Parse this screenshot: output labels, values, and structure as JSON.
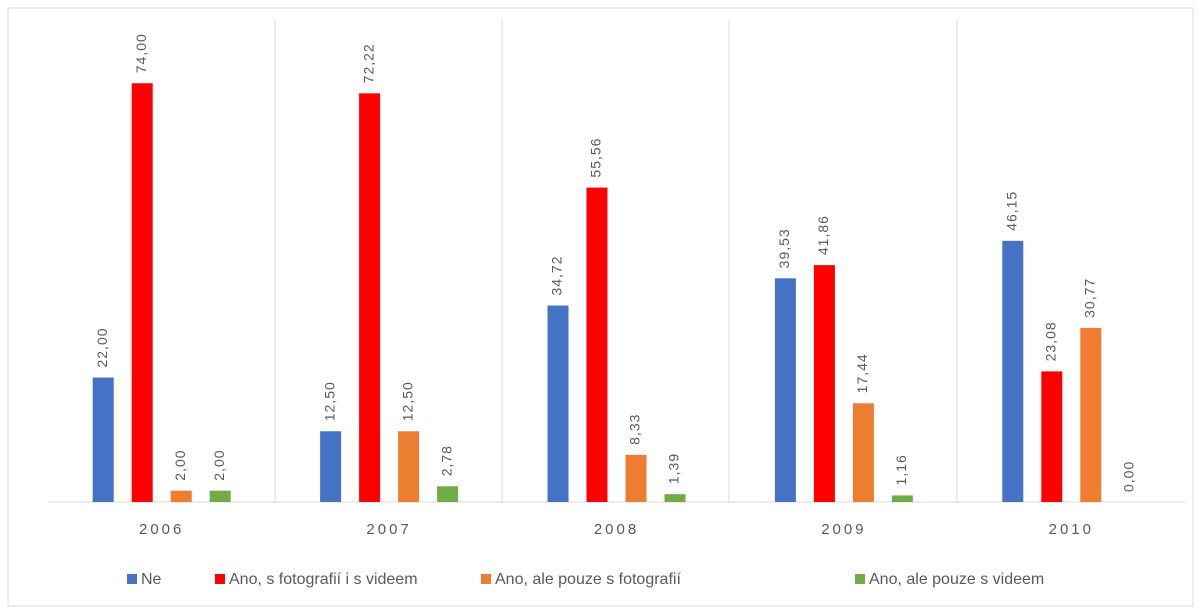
{
  "chart_data": {
    "type": "bar",
    "categories": [
      "2006",
      "2007",
      "2008",
      "2009",
      "2010"
    ],
    "series": [
      {
        "name": "Ne",
        "color": "#4472c4",
        "values": [
          22.0,
          12.5,
          34.72,
          39.53,
          46.15
        ],
        "value_labels": [
          "22,00",
          "12,50",
          "34,72",
          "39,53",
          "46,15"
        ]
      },
      {
        "name": "Ano, s fotografií i s videem",
        "color": "#ff0000",
        "values": [
          74.0,
          72.22,
          55.56,
          41.86,
          23.08
        ],
        "value_labels": [
          "74,00",
          "72,22",
          "55,56",
          "41,86",
          "23,08"
        ]
      },
      {
        "name": "Ano, ale pouze s fotografií",
        "color": "#ed7d31",
        "values": [
          2.0,
          12.5,
          8.33,
          17.44,
          30.77
        ],
        "value_labels": [
          "2,00",
          "12,50",
          "8,33",
          "17,44",
          "30,77"
        ]
      },
      {
        "name": "Ano, ale pouze s videem",
        "color": "#70ad47",
        "values": [
          2.0,
          2.78,
          1.39,
          1.16,
          0.0
        ],
        "value_labels": [
          "2,00",
          "2,78",
          "1,39",
          "1,16",
          "0,00"
        ]
      }
    ],
    "ylim": [
      0,
      85
    ]
  }
}
